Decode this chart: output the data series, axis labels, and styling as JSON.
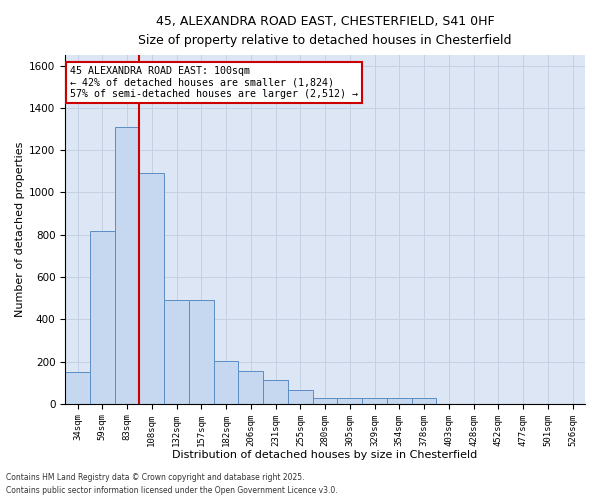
{
  "title_line1": "45, ALEXANDRA ROAD EAST, CHESTERFIELD, S41 0HF",
  "title_line2": "Size of property relative to detached houses in Chesterfield",
  "xlabel": "Distribution of detached houses by size in Chesterfield",
  "ylabel": "Number of detached properties",
  "annotation_title": "45 ALEXANDRA ROAD EAST: 100sqm",
  "annotation_line2": "← 42% of detached houses are smaller (1,824)",
  "annotation_line3": "57% of semi-detached houses are larger (2,512) →",
  "footer_line1": "Contains HM Land Registry data © Crown copyright and database right 2025.",
  "footer_line2": "Contains public sector information licensed under the Open Government Licence v3.0.",
  "bar_color": "#c5d8f0",
  "bar_edge_color": "#5b8ec4",
  "grid_color": "#c4d0e4",
  "bg_color": "#dce6f4",
  "vline_color": "#cc0000",
  "annotation_edge_color": "#cc0000",
  "categories": [
    "34sqm",
    "59sqm",
    "83sqm",
    "108sqm",
    "132sqm",
    "157sqm",
    "182sqm",
    "206sqm",
    "231sqm",
    "255sqm",
    "280sqm",
    "305sqm",
    "329sqm",
    "354sqm",
    "378sqm",
    "403sqm",
    "428sqm",
    "452sqm",
    "477sqm",
    "501sqm",
    "526sqm"
  ],
  "values": [
    150,
    820,
    1310,
    1090,
    490,
    490,
    205,
    155,
    115,
    65,
    30,
    30,
    30,
    30,
    30,
    0,
    0,
    0,
    0,
    0,
    0
  ],
  "ylim": [
    0,
    1650
  ],
  "yticks": [
    0,
    200,
    400,
    600,
    800,
    1000,
    1200,
    1400,
    1600
  ],
  "vline_bin_idx": 3,
  "figsize": [
    6.0,
    5.0
  ],
  "dpi": 100
}
